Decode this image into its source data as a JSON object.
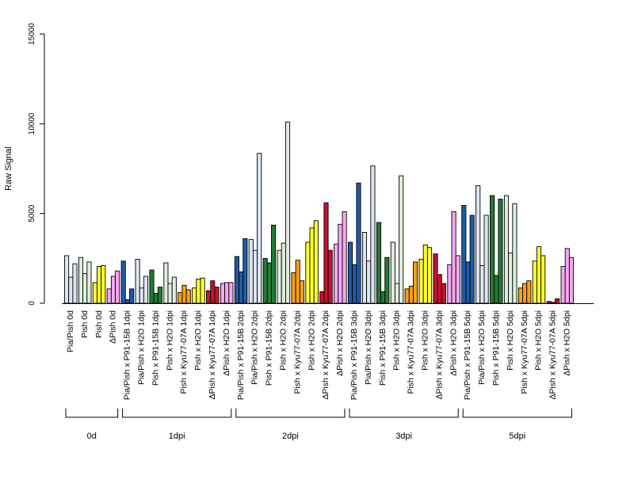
{
  "chart_data": {
    "type": "bar",
    "ylabel": "Raw Signal",
    "ylim": [
      0,
      15000
    ],
    "yticks": [
      0,
      5000,
      10000,
      15000
    ],
    "grid": false,
    "legend": "none",
    "categories": [
      {
        "label": "Pia/Pish 0d",
        "color": "#dce6f2",
        "values": [
          2650,
          1450,
          2200
        ]
      },
      {
        "label": "Pish 0d",
        "color": "#dfeedd",
        "values": [
          2550,
          1650,
          2300
        ]
      },
      {
        "label": "Pish 0d",
        "color": "#ffff33",
        "values": [
          1150,
          2050,
          2100
        ]
      },
      {
        "label": "ΔPish 0d",
        "color": "#f4a8f0",
        "values": [
          800,
          1500,
          1800
        ]
      },
      {
        "label": "Pia/Pish x P91-15B 1dpi",
        "color": "#1f5ca8",
        "values": [
          2350,
          200,
          800
        ]
      },
      {
        "label": "Pia/Pish x H2O 1dpi",
        "color": "#dce6f2",
        "values": [
          2450,
          850,
          1500
        ]
      },
      {
        "label": "Pish x P91-15B 1dpi",
        "color": "#237a35",
        "values": [
          1850,
          550,
          900
        ]
      },
      {
        "label": "Pish x H2O 1dpi",
        "color": "#dfeedd",
        "values": [
          2250,
          1100,
          1450
        ]
      },
      {
        "label": "Pish x Kyu77-07A 1dpi",
        "color": "#f7a11a",
        "values": [
          600,
          1000,
          750
        ]
      },
      {
        "label": "Pish x H2O 1dpi",
        "color": "#ffff33",
        "values": [
          850,
          1350,
          1400
        ]
      },
      {
        "label": "ΔPish x Kyu77-07A 1dpi",
        "color": "#c8102e",
        "values": [
          700,
          1250,
          900
        ]
      },
      {
        "label": "ΔPish x H2O 1dpi",
        "color": "#f4a8f0",
        "values": [
          1100,
          1150,
          1150
        ]
      },
      {
        "label": "Pia/Pish x P91-15B 2dpi",
        "color": "#1f5ca8",
        "values": [
          2600,
          1750,
          3600
        ]
      },
      {
        "label": "Pia/Pish x H2O 2dpi",
        "color": "#dce6f2",
        "values": [
          3550,
          2950,
          8350
        ]
      },
      {
        "label": "Pish x P91-15B 2dpi",
        "color": "#237a35",
        "values": [
          2500,
          2250,
          4350
        ]
      },
      {
        "label": "Pish x H2O 2dpi",
        "color": "#dfeedd",
        "values": [
          2950,
          3350,
          10100
        ]
      },
      {
        "label": "Pish x Kyu77-07A 2dpi",
        "color": "#f7a11a",
        "values": [
          1700,
          2400,
          1250
        ]
      },
      {
        "label": "Pish x H2O 2dpi",
        "color": "#ffff33",
        "values": [
          3400,
          4200,
          4600
        ]
      },
      {
        "label": "ΔPish x Kyu77-07A 2dpi",
        "color": "#c8102e",
        "values": [
          650,
          5600,
          2950
        ]
      },
      {
        "label": "ΔPish x H2O 2dpi",
        "color": "#f4a8f0",
        "values": [
          3300,
          4400,
          5100
        ]
      },
      {
        "label": "Pia/Pish x P91-15B 3dpi",
        "color": "#1f5ca8",
        "values": [
          3400,
          2150,
          6700
        ]
      },
      {
        "label": "Pia/Pish x H2O 3dpi",
        "color": "#dce6f2",
        "values": [
          3950,
          2350,
          7650
        ]
      },
      {
        "label": "Pish x P91-15B 3dpi",
        "color": "#237a35",
        "values": [
          4500,
          650,
          2550
        ]
      },
      {
        "label": "Pish x H2O 3dpi",
        "color": "#dfeedd",
        "values": [
          3400,
          1100,
          7100
        ]
      },
      {
        "label": "Pish x Kyu77-07A 3dpi",
        "color": "#f7a11a",
        "values": [
          800,
          950,
          2300
        ]
      },
      {
        "label": "Pish x H2O 3dpi",
        "color": "#ffff33",
        "values": [
          2450,
          3250,
          3100
        ]
      },
      {
        "label": "ΔPish x Kyu77-07A 3dpi",
        "color": "#c8102e",
        "values": [
          2750,
          1600,
          1100
        ]
      },
      {
        "label": "ΔPish x H2O 3dpi",
        "color": "#f4a8f0",
        "values": [
          2150,
          5100,
          2650
        ]
      },
      {
        "label": "Pia/Pish x P91-15B 5dpi",
        "color": "#1f5ca8",
        "values": [
          5450,
          2300,
          4900
        ]
      },
      {
        "label": "Pia/Pish x H2O 5dpi",
        "color": "#dce6f2",
        "values": [
          6550,
          2100,
          4900
        ]
      },
      {
        "label": "Pish x P91-15B 5dpi",
        "color": "#237a35",
        "values": [
          6000,
          1550,
          5800
        ]
      },
      {
        "label": "Pish x H2O 5dpi",
        "color": "#dfeedd",
        "values": [
          6000,
          2800,
          5550
        ]
      },
      {
        "label": "Pish x Kyu77-07A 5dpi",
        "color": "#f7a11a",
        "values": [
          850,
          1100,
          1250
        ]
      },
      {
        "label": "Pish x H2O 5dpi",
        "color": "#ffff33",
        "values": [
          2350,
          3150,
          2650
        ]
      },
      {
        "label": "ΔPish x Kyu77-07A 5dpi",
        "color": "#c8102e",
        "values": [
          100,
          50,
          250
        ]
      },
      {
        "label": "ΔPish x H2O 5dpi",
        "color": "#f4a8f0",
        "values": [
          2050,
          3050,
          2550
        ]
      }
    ],
    "groups": [
      {
        "label": "0d",
        "start": 0,
        "end": 3
      },
      {
        "label": "1dpi",
        "start": 4,
        "end": 11
      },
      {
        "label": "2dpi",
        "start": 12,
        "end": 19
      },
      {
        "label": "3dpi",
        "start": 20,
        "end": 27
      },
      {
        "label": "5dpi",
        "start": 28,
        "end": 35
      }
    ]
  }
}
